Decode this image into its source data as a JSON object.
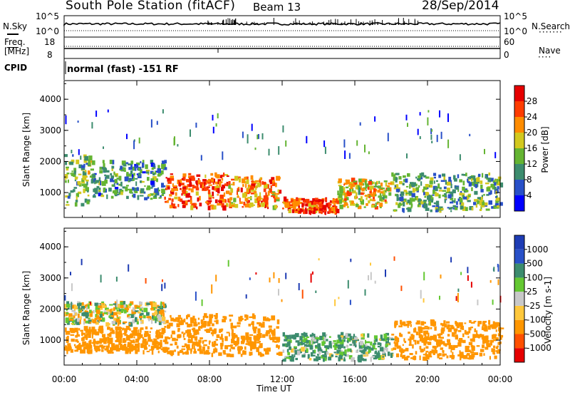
{
  "header": {
    "station": "South Pole Station (fitACF)",
    "beam": "Beam 13",
    "date": "28/Sep/2014"
  },
  "top_panels": {
    "nsky_label": "N.Sky",
    "nsky_ticks": [
      "10^5",
      "10^0"
    ],
    "nsearch_label": "N.Search",
    "nsearch_ticks": [
      "10^5",
      "10^0"
    ],
    "freq_label_1": "Freq.",
    "freq_label_2": "[MHz]",
    "freq_ticks": [
      "18",
      "8"
    ],
    "nave_label": "Nave",
    "nave_ticks": [
      "60",
      "0"
    ],
    "cpid_label": "CPID",
    "cpid_text": "normal (fast) -151 RF"
  },
  "colors": {
    "scale_power": [
      "#0000ff",
      "#2850c8",
      "#3c8c6e",
      "#64b432",
      "#d2c81e",
      "#ff8c00",
      "#ff3c00",
      "#e60000"
    ],
    "scale_velocity": [
      "#e60000",
      "#ff5000",
      "#ff9600",
      "#ffc83c",
      "#c8c8c8",
      "#64c832",
      "#3c8c6e",
      "#2850c8",
      "#1e3cb4"
    ]
  },
  "chart_data": [
    {
      "type": "heatmap",
      "title": "",
      "xlabel": "",
      "ylabel": "Slant Range [km]",
      "x_ticks": [
        "00:00",
        "04:00",
        "08:00",
        "12:00",
        "16:00",
        "20:00",
        "00:00"
      ],
      "y_ticks": [
        "1000",
        "2000",
        "3000",
        "4000"
      ],
      "ylim": [
        200,
        4600
      ],
      "colorbar": {
        "label": "Power [dB]",
        "ticks": [
          "4",
          "8",
          "12",
          "16",
          "20",
          "24",
          "28"
        ],
        "range": [
          0,
          32
        ]
      },
      "regions": [
        {
          "t0": 0.0,
          "t1": 1.5,
          "r0": 600,
          "r1": 2200,
          "value": 14
        },
        {
          "t0": 1.5,
          "t1": 5.5,
          "r0": 800,
          "r1": 2000,
          "value": 10
        },
        {
          "t0": 5.5,
          "t1": 9.0,
          "r0": 500,
          "r1": 1600,
          "value": 26
        },
        {
          "t0": 9.0,
          "t1": 11.8,
          "r0": 500,
          "r1": 1500,
          "value": 22
        },
        {
          "t0": 12.0,
          "t1": 15.0,
          "r0": 350,
          "r1": 800,
          "value": 26
        },
        {
          "t0": 15.0,
          "t1": 18.0,
          "r0": 500,
          "r1": 1400,
          "value": 18
        },
        {
          "t0": 18.0,
          "t1": 24.0,
          "r0": 400,
          "r1": 1600,
          "value": 12
        }
      ]
    },
    {
      "type": "heatmap",
      "title": "",
      "xlabel": "Time UT",
      "ylabel": "Slant Range [km]",
      "x_ticks": [
        "00:00",
        "04:00",
        "08:00",
        "12:00",
        "16:00",
        "20:00",
        "00:00"
      ],
      "y_ticks": [
        "1000",
        "2000",
        "3000",
        "4000"
      ],
      "ylim": [
        200,
        4600
      ],
      "colorbar": {
        "label": "Velocity [m s-1]",
        "ticks": [
          "1000",
          "500",
          "100",
          "25",
          "-25",
          "-100",
          "-500",
          "-1000"
        ]
      },
      "regions": [
        {
          "t0": 0.0,
          "t1": 5.5,
          "r0": 1500,
          "r1": 2200,
          "value": 0
        },
        {
          "t0": 0.0,
          "t1": 5.5,
          "r0": 600,
          "r1": 1400,
          "value": -300
        },
        {
          "t0": 5.5,
          "t1": 11.8,
          "r0": 500,
          "r1": 1800,
          "value": -300
        },
        {
          "t0": 12.0,
          "t1": 18.0,
          "r0": 350,
          "r1": 1200,
          "value": 150
        },
        {
          "t0": 18.0,
          "t1": 24.0,
          "r0": 400,
          "r1": 1600,
          "value": -300
        }
      ]
    }
  ]
}
